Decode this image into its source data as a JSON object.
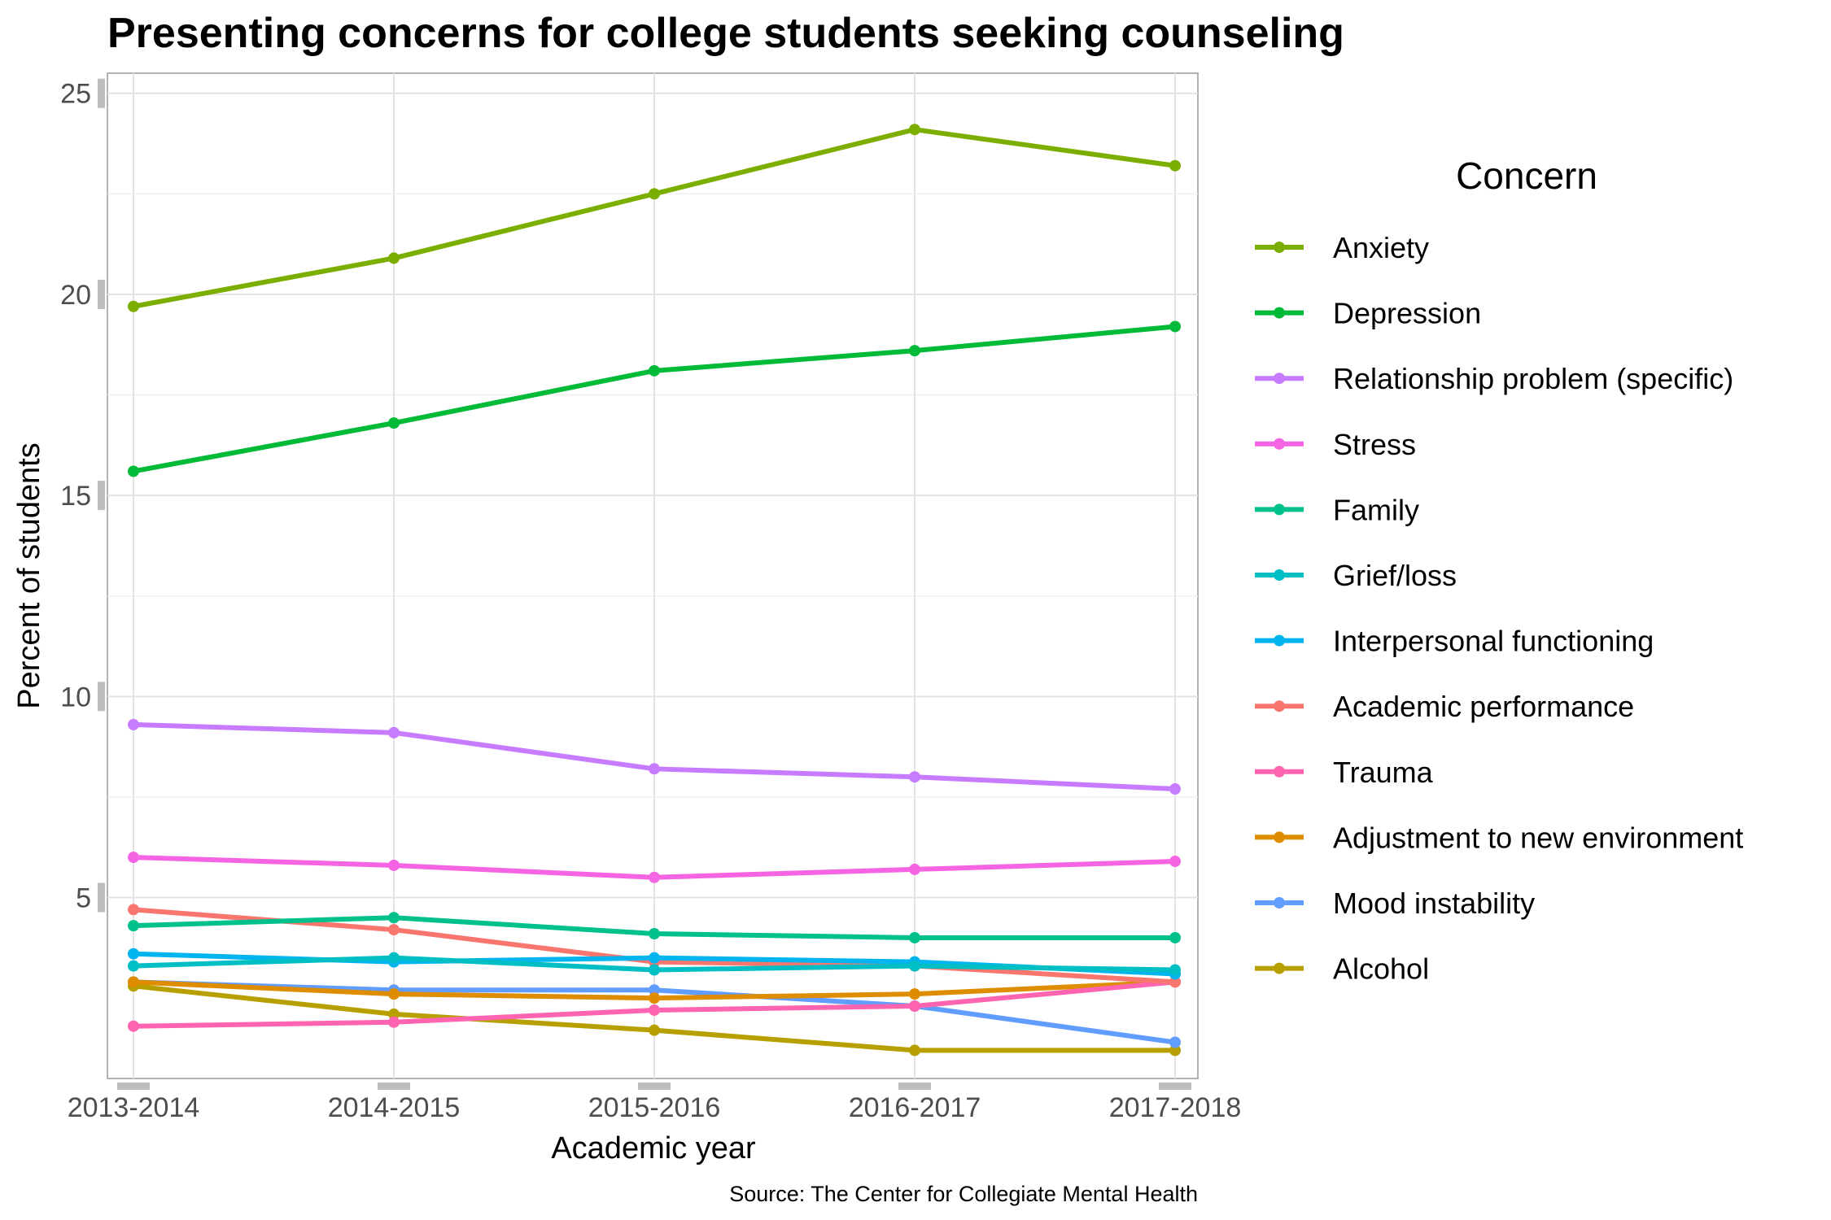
{
  "chart_data": {
    "type": "line",
    "title": "Presenting concerns for college students seeking counseling",
    "xlabel": "Academic year",
    "ylabel": "Percent of students",
    "caption": "Source: The Center for Collegiate Mental Health",
    "categories": [
      "2013-2014",
      "2014-2015",
      "2015-2016",
      "2016-2017",
      "2017-2018"
    ],
    "yticks": [
      "5",
      "10",
      "15",
      "20",
      "25"
    ],
    "ylim": [
      0.5,
      25.5
    ],
    "grid": true,
    "legend_title": "Concern",
    "legend_position": "right",
    "series": [
      {
        "name": "Anxiety",
        "color": "#7CAE00",
        "values": [
          19.7,
          20.9,
          22.5,
          24.1,
          23.2
        ]
      },
      {
        "name": "Depression",
        "color": "#00BA38",
        "values": [
          15.6,
          16.8,
          18.1,
          18.6,
          19.2
        ]
      },
      {
        "name": "Relationship problem (specific)",
        "color": "#C77CFF",
        "values": [
          9.3,
          9.1,
          8.2,
          8.0,
          7.7
        ]
      },
      {
        "name": "Stress",
        "color": "#F564E3",
        "values": [
          6.0,
          5.8,
          5.5,
          5.7,
          5.9
        ]
      },
      {
        "name": "Family",
        "color": "#00C08B",
        "values": [
          4.3,
          4.5,
          4.1,
          4.0,
          4.0
        ]
      },
      {
        "name": "Grief/loss",
        "color": "#00BFC4",
        "values": [
          3.3,
          3.5,
          3.2,
          3.3,
          3.2
        ]
      },
      {
        "name": "Interpersonal functioning",
        "color": "#00B4F0",
        "values": [
          3.6,
          3.4,
          3.5,
          3.4,
          3.1
        ]
      },
      {
        "name": "Academic performance",
        "color": "#F8766D",
        "values": [
          4.7,
          4.2,
          3.4,
          3.3,
          2.9
        ]
      },
      {
        "name": "Trauma",
        "color": "#FF64B0",
        "values": [
          1.8,
          1.9,
          2.2,
          2.3,
          2.9
        ]
      },
      {
        "name": "Adjustment to new environment",
        "color": "#DE8C00",
        "values": [
          2.9,
          2.6,
          2.5,
          2.6,
          2.9
        ]
      },
      {
        "name": "Mood instability",
        "color": "#619CFF",
        "values": [
          2.9,
          2.7,
          2.7,
          2.3,
          1.4
        ]
      },
      {
        "name": "Alcohol",
        "color": "#B79F00",
        "values": [
          2.8,
          2.1,
          1.7,
          1.2,
          1.2
        ]
      }
    ]
  }
}
